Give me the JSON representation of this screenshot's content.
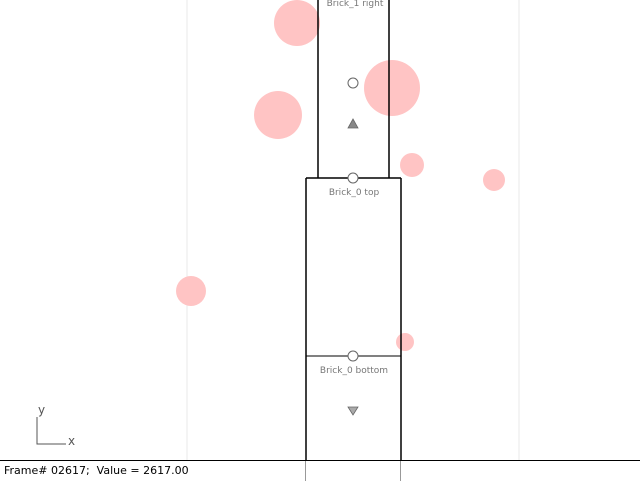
{
  "viewport": {
    "background": "#ffffff",
    "guide_color": "#e8e8e8",
    "ball_color": "#ffc4c4",
    "outline_color": "#000000",
    "labels": {
      "brick1_right": "Brick_1 right",
      "brick0_top": "Brick_0 top",
      "brick0_bottom": "Brick_0 bottom"
    },
    "axes": {
      "y": "y",
      "x": "x"
    },
    "markers": [
      "circle-marker",
      "up-triangle-marker",
      "down-triangle-marker"
    ]
  },
  "status": {
    "frame_label": "Frame#",
    "frame": "02617",
    "value_label": "Value =",
    "value": "2617.00",
    "text": "Frame# 02617;  Value = 2617.00"
  }
}
